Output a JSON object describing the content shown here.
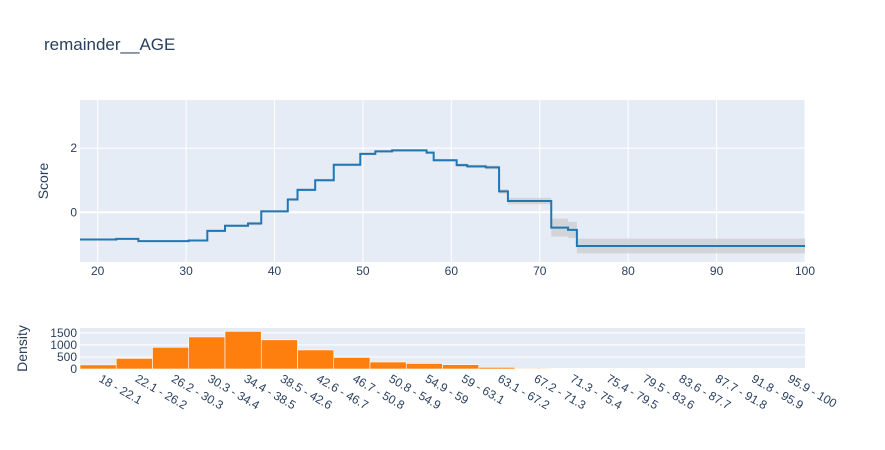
{
  "title": "remainder__AGE",
  "chart_data": [
    {
      "type": "line",
      "shape": "step",
      "ylabel": "Score",
      "xlim": [
        18,
        100
      ],
      "ylim": [
        -1.55,
        3.5
      ],
      "xticks": [
        20,
        30,
        40,
        50,
        60,
        70,
        80,
        90,
        100
      ],
      "yticks": [
        0,
        2
      ],
      "grid": true,
      "line_color": "#1f77b4",
      "band_color": "#cccccc",
      "series": [
        {
          "x": [
            18,
            22.1,
            24.6,
            30.3,
            32.4,
            34.4,
            37.0,
            38.5,
            41.5,
            42.6,
            44.6,
            46.7,
            49.7,
            51.4,
            53.3,
            57.2,
            58.0,
            60.6,
            61.8,
            63.9,
            65.4,
            66.4,
            71.3,
            73.2,
            74.2,
            100
          ],
          "y": [
            -0.85,
            -0.83,
            -0.9,
            -0.88,
            -0.58,
            -0.42,
            -0.35,
            0.03,
            0.4,
            0.7,
            1.0,
            1.48,
            1.82,
            1.9,
            1.93,
            1.86,
            1.62,
            1.47,
            1.43,
            1.4,
            0.65,
            0.35,
            -0.48,
            -0.55,
            -1.05,
            -1.05
          ],
          "upper": [
            -0.83,
            -0.81,
            -0.88,
            -0.85,
            -0.54,
            -0.38,
            -0.3,
            0.07,
            0.44,
            0.74,
            1.04,
            1.52,
            1.86,
            1.94,
            1.97,
            1.9,
            1.66,
            1.52,
            1.48,
            1.46,
            0.72,
            0.45,
            -0.2,
            -0.3,
            -0.82,
            -0.82
          ],
          "lower": [
            -0.87,
            -0.85,
            -0.92,
            -0.91,
            -0.62,
            -0.46,
            -0.4,
            -0.01,
            0.36,
            0.66,
            0.96,
            1.44,
            1.78,
            1.86,
            1.89,
            1.82,
            1.58,
            1.42,
            1.38,
            1.34,
            0.58,
            0.25,
            -0.76,
            -0.8,
            -1.28,
            -1.28
          ]
        }
      ]
    },
    {
      "type": "bar",
      "ylabel": "Density",
      "ylim": [
        0,
        1700
      ],
      "yticks": [
        0,
        500,
        1000,
        1500
      ],
      "grid": true,
      "bar_color": "#ff7f0e",
      "categories": [
        "18 - 22.1",
        "22.1 - 26.2",
        "26.2 - 30.3",
        "30.3 - 34.4",
        "34.4 - 38.5",
        "38.5 - 42.6",
        "42.6 - 46.7",
        "46.7 - 50.8",
        "50.8 - 54.9",
        "54.9 - 59",
        "59 - 63.1",
        "63.1 - 67.2",
        "67.2 - 71.3",
        "71.3 - 75.4",
        "75.4 - 79.5",
        "79.5 - 83.6",
        "83.6 - 87.7",
        "87.7 - 91.8",
        "91.8 - 95.9",
        "95.9 - 100"
      ],
      "values": [
        170,
        440,
        900,
        1330,
        1560,
        1210,
        790,
        480,
        290,
        230,
        180,
        70,
        30,
        15,
        8,
        4,
        2,
        1,
        1,
        1
      ]
    }
  ]
}
